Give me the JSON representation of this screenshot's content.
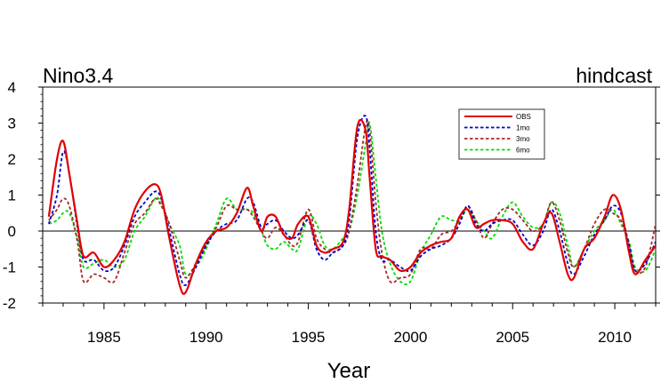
{
  "title_left": "Nino3.4",
  "title_right": "hindcast",
  "chart_data": {
    "type": "line",
    "title": "Nino3.4",
    "subtitle": "hindcast",
    "xlabel": "Year",
    "ylabel": "",
    "xlim": [
      1982,
      2012
    ],
    "ylim": [
      -2,
      4
    ],
    "xticks": [
      1985,
      1990,
      1995,
      2000,
      2005,
      2010
    ],
    "yticks": [
      -2,
      -1,
      0,
      1,
      2,
      3,
      4
    ],
    "zero_line": true,
    "grid": false,
    "legend_position": "top-right",
    "series": [
      {
        "name": "OBS",
        "color": "#e00000",
        "dash": "solid",
        "x": [
          1982.3,
          1982.7,
          1983.0,
          1983.3,
          1983.7,
          1984.0,
          1984.5,
          1985.0,
          1985.5,
          1986.0,
          1986.5,
          1987.0,
          1987.5,
          1987.8,
          1988.2,
          1988.7,
          1989.0,
          1989.5,
          1990.0,
          1990.5,
          1991.0,
          1991.5,
          1992.0,
          1992.3,
          1992.7,
          1993.0,
          1993.4,
          1993.8,
          1994.2,
          1994.5,
          1995.0,
          1995.4,
          1995.8,
          1996.2,
          1996.7,
          1997.0,
          1997.4,
          1997.8,
          1998.0,
          1998.3,
          1998.6,
          1999.0,
          1999.5,
          2000.0,
          2000.5,
          2001.0,
          2001.5,
          2002.0,
          2002.4,
          2002.8,
          2003.2,
          2003.6,
          2004.0,
          2004.5,
          2005.0,
          2005.5,
          2006.0,
          2006.5,
          2006.9,
          2007.3,
          2007.7,
          2008.0,
          2008.5,
          2009.0,
          2009.5,
          2009.9,
          2010.3,
          2010.7,
          2011.0,
          2011.5,
          2012.0
        ],
        "values": [
          0.4,
          2.0,
          2.5,
          1.6,
          0.2,
          -0.7,
          -0.6,
          -1.0,
          -0.8,
          -0.3,
          0.6,
          1.1,
          1.3,
          1.0,
          -0.2,
          -1.5,
          -1.7,
          -0.9,
          -0.3,
          0.0,
          0.1,
          0.5,
          1.2,
          0.7,
          0.0,
          0.4,
          0.4,
          -0.1,
          -0.2,
          0.2,
          0.4,
          -0.4,
          -0.6,
          -0.5,
          -0.3,
          0.6,
          2.9,
          2.8,
          1.5,
          -0.5,
          -0.7,
          -0.8,
          -1.1,
          -1.0,
          -0.6,
          -0.4,
          -0.3,
          -0.2,
          0.4,
          0.6,
          0.1,
          0.2,
          0.3,
          0.3,
          0.2,
          -0.3,
          -0.5,
          0.2,
          0.5,
          -0.3,
          -1.2,
          -1.3,
          -0.5,
          -0.2,
          0.4,
          1.0,
          0.6,
          -0.6,
          -1.2,
          -0.8,
          -0.4
        ]
      },
      {
        "name": "1mo",
        "color": "#0000cc",
        "dash": "dash",
        "x": [
          1982.3,
          1982.7,
          1983.0,
          1983.3,
          1983.7,
          1984.0,
          1984.5,
          1985.0,
          1985.5,
          1986.0,
          1986.5,
          1987.0,
          1987.5,
          1987.8,
          1988.2,
          1988.7,
          1989.0,
          1989.5,
          1990.0,
          1990.5,
          1991.0,
          1991.5,
          1992.0,
          1992.3,
          1992.7,
          1993.0,
          1993.4,
          1993.8,
          1994.2,
          1994.5,
          1995.0,
          1995.4,
          1995.8,
          1996.2,
          1996.7,
          1997.0,
          1997.4,
          1997.8,
          1998.0,
          1998.3,
          1998.6,
          1999.0,
          1999.5,
          2000.0,
          2000.5,
          2001.0,
          2001.5,
          2002.0,
          2002.4,
          2002.8,
          2003.2,
          2003.6,
          2004.0,
          2004.5,
          2005.0,
          2005.5,
          2006.0,
          2006.5,
          2006.9,
          2007.3,
          2007.7,
          2008.0,
          2008.5,
          2009.0,
          2009.5,
          2009.9,
          2010.3,
          2010.7,
          2011.0,
          2011.5,
          2012.0
        ],
        "values": [
          0.2,
          1.0,
          2.2,
          1.6,
          0.1,
          -0.8,
          -0.8,
          -1.1,
          -1.0,
          -0.4,
          0.4,
          0.8,
          1.1,
          0.9,
          0.0,
          -1.2,
          -1.5,
          -1.0,
          -0.4,
          0.0,
          0.2,
          0.3,
          0.9,
          0.8,
          0.1,
          0.2,
          0.3,
          0.0,
          -0.2,
          -0.1,
          0.3,
          -0.5,
          -0.8,
          -0.6,
          -0.4,
          0.3,
          2.6,
          3.2,
          2.3,
          0.0,
          -0.8,
          -0.8,
          -1.0,
          -1.1,
          -0.7,
          -0.5,
          -0.4,
          -0.2,
          0.2,
          0.7,
          0.2,
          0.0,
          0.2,
          0.3,
          0.3,
          -0.1,
          -0.4,
          0.0,
          0.6,
          0.0,
          -0.9,
          -1.2,
          -0.7,
          -0.1,
          0.3,
          0.7,
          0.5,
          -0.4,
          -1.1,
          -0.9,
          -0.3
        ]
      },
      {
        "name": "3mo",
        "color": "#a52a2a",
        "dash": "dash",
        "x": [
          1982.3,
          1982.7,
          1983.0,
          1983.3,
          1983.7,
          1984.0,
          1984.5,
          1985.0,
          1985.5,
          1986.0,
          1986.5,
          1987.0,
          1987.5,
          1987.8,
          1988.2,
          1988.7,
          1989.0,
          1989.5,
          1990.0,
          1990.5,
          1991.0,
          1991.5,
          1992.0,
          1992.3,
          1992.7,
          1993.0,
          1993.4,
          1993.8,
          1994.2,
          1994.5,
          1995.0,
          1995.4,
          1995.8,
          1996.2,
          1996.7,
          1997.0,
          1997.4,
          1997.8,
          1998.0,
          1998.3,
          1998.6,
          1999.0,
          1999.5,
          2000.0,
          2000.5,
          2001.0,
          2001.5,
          2002.0,
          2002.4,
          2002.8,
          2003.2,
          2003.6,
          2004.0,
          2004.5,
          2005.0,
          2005.5,
          2006.0,
          2006.5,
          2006.9,
          2007.3,
          2007.7,
          2008.0,
          2008.5,
          2009.0,
          2009.5,
          2009.9,
          2010.3,
          2010.7,
          2011.0,
          2011.5,
          2012.0
        ],
        "values": [
          0.3,
          0.6,
          0.9,
          0.7,
          -0.3,
          -1.4,
          -1.2,
          -1.3,
          -1.4,
          -0.6,
          0.2,
          0.5,
          0.9,
          0.7,
          0.2,
          -0.8,
          -1.3,
          -0.9,
          -0.4,
          0.1,
          0.7,
          0.6,
          0.6,
          0.4,
          0.0,
          -0.2,
          0.1,
          -0.1,
          -0.4,
          -0.3,
          0.6,
          -0.2,
          -0.5,
          -0.6,
          -0.4,
          0.0,
          1.3,
          2.9,
          2.8,
          0.8,
          -0.6,
          -1.4,
          -1.3,
          -1.2,
          -0.5,
          -0.5,
          -0.1,
          0.0,
          0.3,
          0.7,
          0.3,
          -0.2,
          0.2,
          0.6,
          0.6,
          0.3,
          0.0,
          0.2,
          0.8,
          0.3,
          -0.6,
          -1.0,
          -0.5,
          0.2,
          0.6,
          0.5,
          0.3,
          -0.4,
          -1.1,
          -1.0,
          0.2
        ]
      },
      {
        "name": "6mo",
        "color": "#00dd00",
        "dash": "dash",
        "x": [
          1982.3,
          1982.7,
          1983.0,
          1983.3,
          1983.7,
          1984.0,
          1984.5,
          1985.0,
          1985.5,
          1986.0,
          1986.5,
          1987.0,
          1987.5,
          1987.8,
          1988.2,
          1988.7,
          1989.0,
          1989.5,
          1990.0,
          1990.5,
          1991.0,
          1991.5,
          1992.0,
          1992.3,
          1992.7,
          1993.0,
          1993.4,
          1993.8,
          1994.2,
          1994.5,
          1995.0,
          1995.4,
          1995.8,
          1996.2,
          1996.7,
          1997.0,
          1997.4,
          1997.8,
          1998.0,
          1998.3,
          1998.6,
          1999.0,
          1999.5,
          2000.0,
          2000.5,
          2001.0,
          2001.5,
          2002.0,
          2002.4,
          2002.8,
          2003.2,
          2003.6,
          2004.0,
          2004.5,
          2005.0,
          2005.5,
          2006.0,
          2006.5,
          2006.9,
          2007.3,
          2007.7,
          2008.0,
          2008.5,
          2009.0,
          2009.5,
          2009.9,
          2010.3,
          2010.7,
          2011.0,
          2011.5,
          2012.0
        ],
        "values": [
          0.2,
          0.3,
          0.5,
          0.5,
          -0.2,
          -1.0,
          -0.9,
          -0.8,
          -1.0,
          -0.8,
          0.0,
          0.4,
          0.9,
          0.8,
          0.2,
          -0.4,
          -1.2,
          -1.0,
          -0.5,
          0.2,
          0.9,
          0.6,
          0.6,
          0.5,
          0.0,
          -0.4,
          -0.5,
          -0.3,
          -0.5,
          -0.5,
          0.4,
          0.2,
          -0.4,
          -0.5,
          -0.2,
          0.0,
          1.0,
          2.4,
          3.0,
          1.5,
          0.0,
          -0.9,
          -1.4,
          -1.4,
          -0.6,
          -0.1,
          0.4,
          0.3,
          0.3,
          0.6,
          0.3,
          0.0,
          -0.2,
          0.4,
          0.8,
          0.4,
          0.1,
          0.2,
          0.8,
          0.5,
          -0.4,
          -1.0,
          -0.5,
          0.0,
          0.3,
          0.6,
          0.2,
          -0.3,
          -1.0,
          -1.1,
          -0.5
        ]
      }
    ]
  }
}
